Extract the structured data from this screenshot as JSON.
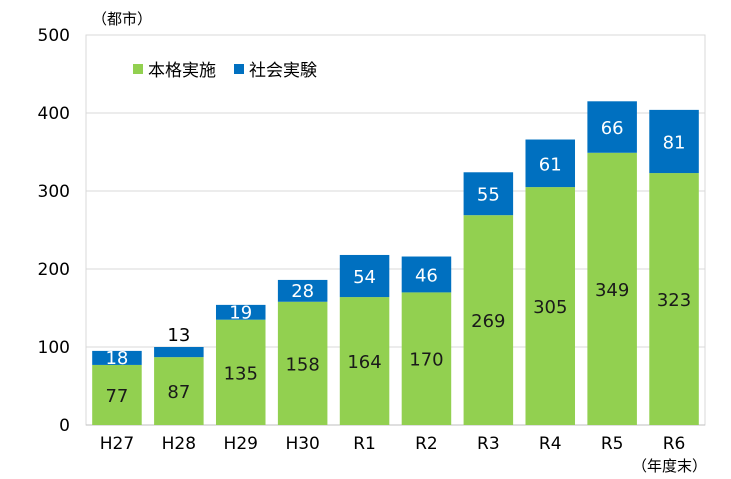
{
  "chart_data": {
    "type": "bar",
    "stacked": true,
    "title": "",
    "y_unit_label": "（都市）",
    "x_end_note": "（年度末）",
    "categories": [
      "H27",
      "H28",
      "H29",
      "H30",
      "R1",
      "R2",
      "R3",
      "R4",
      "R5",
      "R6"
    ],
    "series": [
      {
        "name": "本格実施",
        "color": "#92d050",
        "values": [
          77,
          87,
          135,
          158,
          164,
          170,
          269,
          305,
          349,
          323
        ]
      },
      {
        "name": "社会実験",
        "color": "#0070c0",
        "values": [
          18,
          13,
          19,
          28,
          54,
          46,
          55,
          61,
          66,
          81
        ]
      }
    ],
    "ylim": [
      0,
      500
    ],
    "yticks": [
      0,
      100,
      200,
      300,
      400,
      500
    ],
    "grid": true,
    "legend_position": "top-left"
  }
}
